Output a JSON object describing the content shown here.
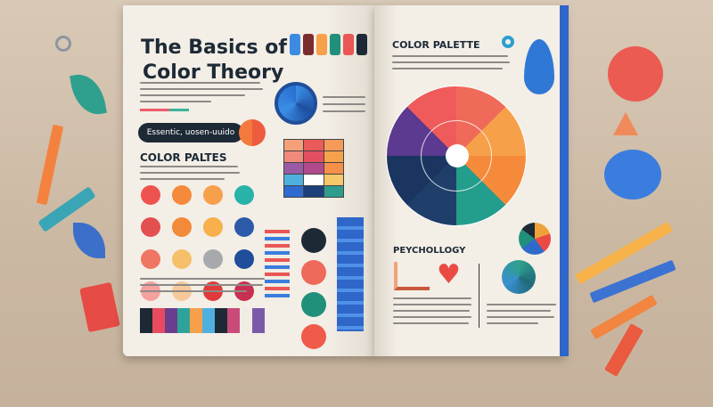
{
  "left_page": {
    "title_line1": "The Basics of",
    "title_line2": "Color Theory",
    "pill_label": "Essentic, uosen-uuido",
    "section_heading": "COLOR PALTES",
    "swatches": [
      "#ef5350",
      "#f58a3c",
      "#f7a04b",
      "#27b3a8",
      "#e44f4f",
      "#f28a3a",
      "#f8b04c",
      "#2d5aa8",
      "#f07563",
      "#f6bf6a",
      "#a7a9ac",
      "#1f4e9a",
      "#f6a0a0",
      "#f7c99a",
      "#e03a3a",
      "#c92f50"
    ]
  },
  "right_page": {
    "heading": "COLOR PALETTE",
    "wheel_colors": [
      "#f06a5a",
      "#f7a04a",
      "#f58a3a",
      "#239d8c",
      "#1f3f6a",
      "#1a3560",
      "#5b3a8f",
      "#ef5b5b"
    ],
    "psychology_heading": "PEYCHOLLOGY"
  },
  "colors": {
    "accent_blue": "#2f66c9",
    "ink": "#1d2a36",
    "page": "#f2ede4",
    "background": "#cdbba6"
  }
}
